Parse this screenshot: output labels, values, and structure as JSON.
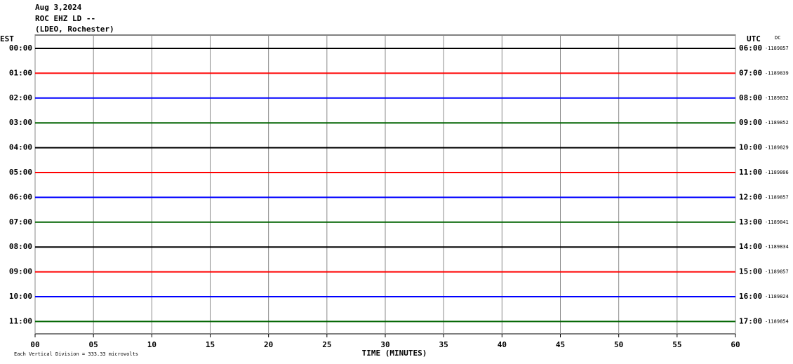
{
  "chart_data": {
    "type": "helicorder",
    "title_lines": [
      "Aug 3,2024",
      "ROC EHZ LD --",
      "(LDEO, Rochester)"
    ],
    "left_axis_title": "EST",
    "right_axis_title": "UTC",
    "dc_title": "DC",
    "x_label": "TIME (MINUTES)",
    "footer": "Each Vertical Division =  333.33 microvolts",
    "xlim": [
      0,
      60
    ],
    "xticks": [
      {
        "value": 0,
        "label": "00"
      },
      {
        "value": 5,
        "label": "05"
      },
      10,
      15,
      20,
      25,
      30,
      35,
      40,
      45,
      50,
      55,
      60
    ],
    "grid": true,
    "rows": [
      {
        "est": "00:00",
        "utc": "06:00",
        "dc": -1189857,
        "color": "#000000"
      },
      {
        "est": "01:00",
        "utc": "07:00",
        "dc": -1189839,
        "color": "#ff0000"
      },
      {
        "est": "02:00",
        "utc": "08:00",
        "dc": -1189832,
        "color": "#0000ff"
      },
      {
        "est": "03:00",
        "utc": "09:00",
        "dc": -1189852,
        "color": "#006400"
      },
      {
        "est": "04:00",
        "utc": "10:00",
        "dc": -1189829,
        "color": "#000000"
      },
      {
        "est": "05:00",
        "utc": "11:00",
        "dc": -1189806,
        "color": "#ff0000"
      },
      {
        "est": "06:00",
        "utc": "12:00",
        "dc": -1189857,
        "color": "#0000ff"
      },
      {
        "est": "07:00",
        "utc": "13:00",
        "dc": -1189841,
        "color": "#006400"
      },
      {
        "est": "08:00",
        "utc": "14:00",
        "dc": -1189834,
        "color": "#000000"
      },
      {
        "est": "09:00",
        "utc": "15:00",
        "dc": -1189857,
        "color": "#ff0000"
      },
      {
        "est": "10:00",
        "utc": "16:00",
        "dc": -1189824,
        "color": "#0000ff"
      },
      {
        "est": "11:00",
        "utc": "17:00",
        "dc": -1189854,
        "color": "#006400"
      }
    ]
  }
}
